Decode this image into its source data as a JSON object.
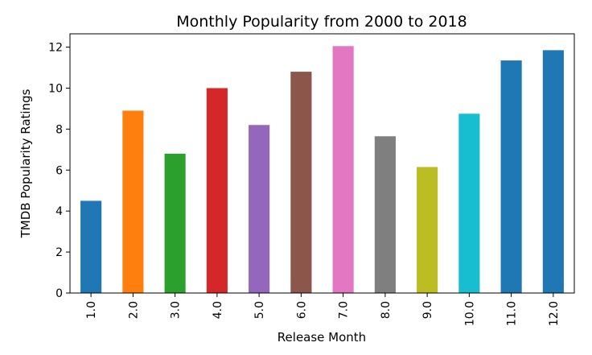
{
  "chart_data": {
    "type": "bar",
    "title": "Monthly Popularity from 2000 to 2018",
    "xlabel": "Release Month",
    "ylabel": "TMDB Popularity Ratings",
    "categories": [
      "1.0",
      "2.0",
      "3.0",
      "4.0",
      "5.0",
      "6.0",
      "7.0",
      "8.0",
      "9.0",
      "10.0",
      "11.0",
      "12.0"
    ],
    "values": [
      4.5,
      8.9,
      6.8,
      10.0,
      8.2,
      10.8,
      12.05,
      7.65,
      6.15,
      8.75,
      11.35,
      11.85
    ],
    "colors": [
      "#1f77b4",
      "#ff7f0e",
      "#2ca02c",
      "#d62728",
      "#9467bd",
      "#8c564b",
      "#e377c2",
      "#7f7f7f",
      "#bcbd22",
      "#17becf",
      "#1f77b4",
      "#1f77b4"
    ],
    "ylim": [
      0,
      12.65
    ],
    "yticks": [
      0,
      2,
      4,
      6,
      8,
      10,
      12
    ],
    "grid": false,
    "legend": false
  }
}
